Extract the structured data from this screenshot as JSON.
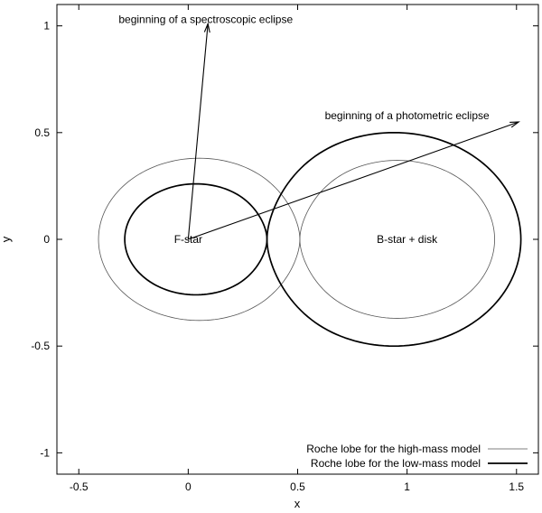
{
  "chart_data": {
    "type": "line",
    "title": "",
    "xlabel": "x",
    "ylabel": "y",
    "xlim": [
      -0.6,
      1.6
    ],
    "ylim": [
      -1.1,
      1.1
    ],
    "xticks": [
      -0.5,
      0,
      0.5,
      1,
      1.5
    ],
    "yticks": [
      -1,
      -0.5,
      0,
      0.5,
      1
    ],
    "xtick_labels": [
      "-0.5",
      "0",
      "0.5",
      "1",
      "1.5"
    ],
    "ytick_labels": [
      "-1",
      "-0.5",
      "0",
      "0.5",
      "1"
    ],
    "grid": false,
    "legend_position": "bottom-right",
    "series": [
      {
        "name": "Roche lobe for the high-mass model",
        "style": "thin",
        "color": "#555555",
        "lobes": [
          {
            "cx": 0.0,
            "left": -0.41,
            "right": 0.51,
            "half_height": 0.38
          },
          {
            "cx": 1.0,
            "left": 0.51,
            "right": 1.4,
            "half_height": 0.37
          }
        ]
      },
      {
        "name": "Roche lobe for the low-mass model",
        "style": "thick",
        "color": "#000000",
        "lobes": [
          {
            "cx": 0.0,
            "left": -0.29,
            "right": 0.36,
            "half_height": 0.26
          },
          {
            "cx": 1.0,
            "left": 0.36,
            "right": 1.52,
            "half_height": 0.5
          }
        ]
      }
    ],
    "annotations": [
      {
        "text": "F-star",
        "x": 0.0,
        "y": 0.0
      },
      {
        "text": "B-star + disk",
        "x": 1.0,
        "y": 0.0
      },
      {
        "text": "beginning of a spectroscopic eclipse",
        "x": 0.08,
        "y": 1.03
      },
      {
        "text": "beginning of a photometric eclipse",
        "x": 1.0,
        "y": 0.58
      }
    ],
    "arrows": [
      {
        "from": [
          0.0,
          0.0
        ],
        "to": [
          0.09,
          1.01
        ]
      },
      {
        "from": [
          0.0,
          0.0
        ],
        "to": [
          1.51,
          0.55
        ]
      }
    ]
  }
}
